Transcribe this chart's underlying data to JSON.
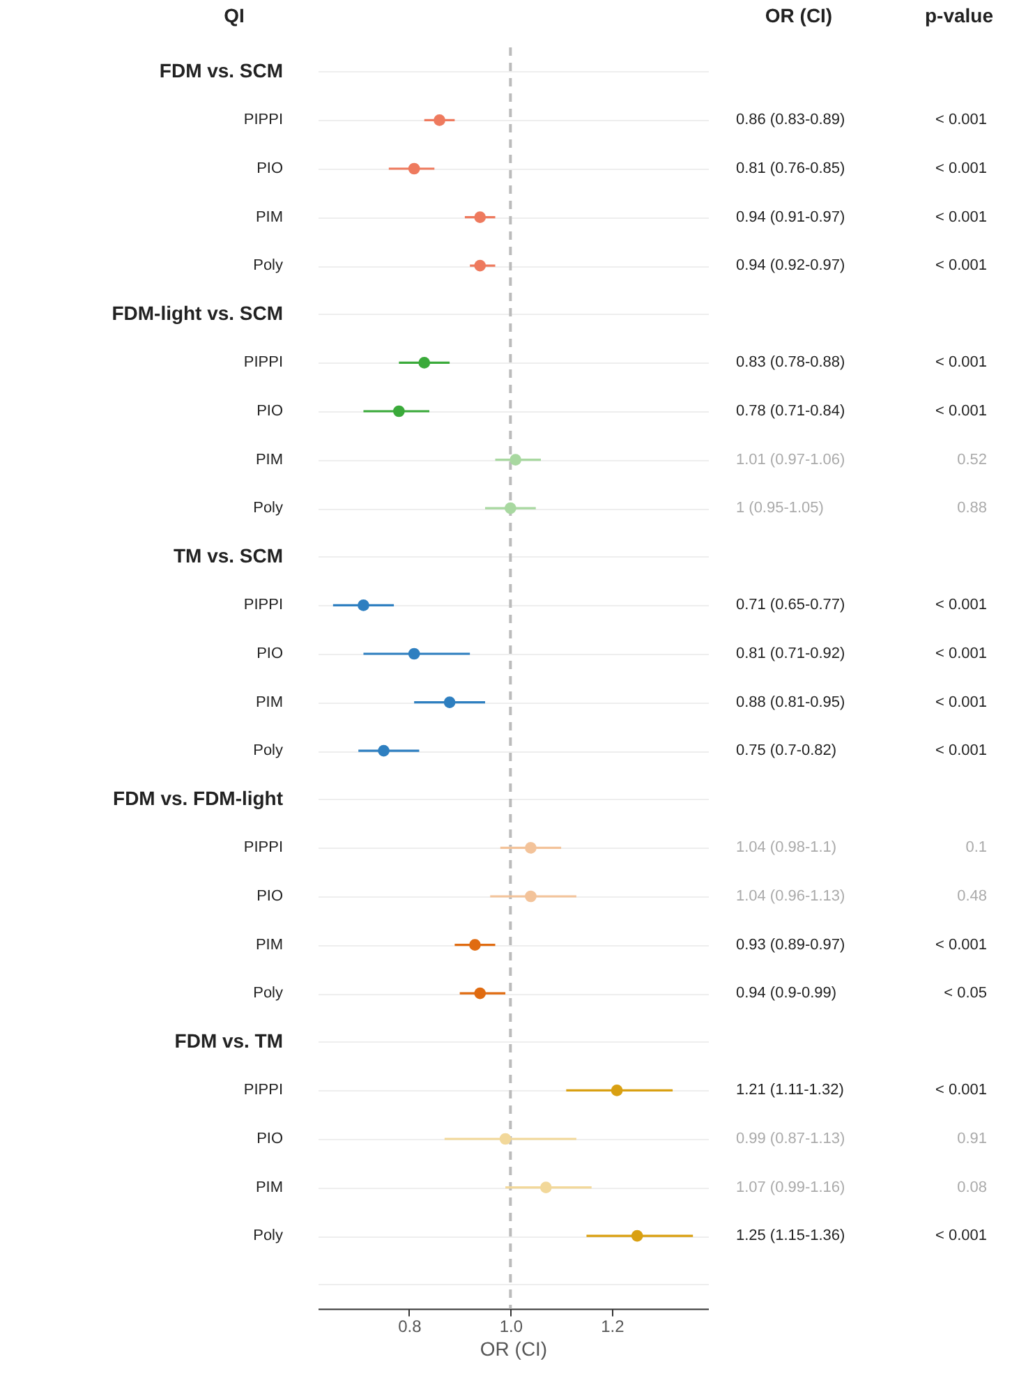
{
  "chart_data": {
    "type": "scatter",
    "ylabel": "QI",
    "xlabel": "OR (CI)",
    "categories": [
      "FDM vs. SCM",
      "PIPPI",
      "PIO",
      "PIM",
      "Poly",
      "FDM-light vs. SCM",
      "PIPPI",
      "PIO",
      "PIM",
      "Poly",
      "TM vs. SCM",
      "PIPPI",
      "PIO",
      "PIM",
      "Poly",
      "FDM vs. FDM-light",
      "PIPPI",
      "PIO",
      "PIM",
      "Poly",
      "FDM vs. TM",
      "PIPPI",
      "PIO",
      "PIM",
      "Poly",
      null
    ],
    "values": [
      null,
      0.86,
      0.81,
      0.94,
      0.94,
      null,
      0.83,
      0.78,
      1.01,
      1,
      null,
      0.71,
      0.81,
      0.88,
      0.75,
      null,
      1.04,
      1.04,
      0.93,
      0.94,
      null,
      1.21,
      0.99,
      1.07,
      1.25,
      null
    ],
    "orientation": "horizontal",
    "errors": [
      null,
      [
        0.83,
        0.89
      ],
      [
        0.76,
        0.85
      ],
      [
        0.91,
        0.97
      ],
      [
        0.92,
        0.97
      ],
      null,
      [
        0.78,
        0.88
      ],
      [
        0.71,
        0.84
      ],
      [
        0.97,
        1.06
      ],
      [
        0.95,
        1.05
      ],
      null,
      [
        0.65,
        0.77
      ],
      [
        0.71,
        0.92
      ],
      [
        0.81,
        0.95
      ],
      [
        0.7,
        0.82
      ],
      null,
      [
        0.98,
        1.1
      ],
      [
        0.96,
        1.13
      ],
      [
        0.89,
        0.97
      ],
      [
        0.9,
        0.99
      ],
      null,
      [
        1.11,
        1.32
      ],
      [
        0.87,
        1.13
      ],
      [
        0.99,
        1.16
      ],
      [
        1.15,
        1.36
      ],
      null
    ],
    "colors": [
      null,
      "#ee7a5e",
      "#ee7a5e",
      "#ee7a5e",
      "#ee7a5e",
      null,
      "#3aaa3a",
      "#3aaa3a",
      "#a8d8a0",
      "#a8d8a0",
      null,
      "#2e7fc0",
      "#2e7fc0",
      "#2e7fc0",
      "#2e7fc0",
      null,
      "#f3c39a",
      "#f3c39a",
      "#e06b10",
      "#e06b10",
      null,
      "#d9a012",
      "#f2d89a",
      "#f2d89a",
      "#d9a012",
      null
    ],
    "annotations": [
      "OR (CI)",
      "p-value",
      "0.86 (0.83-0.89)",
      "< 0.001",
      "0.81 (0.76-0.85)",
      "< 0.001",
      "0.94 (0.91-0.97)",
      "< 0.001",
      "0.94 (0.92-0.97)",
      "< 0.001",
      "0.83 (0.78-0.88)",
      "< 0.001",
      "0.78 (0.71-0.84)",
      "< 0.001",
      "1.01 (0.97-1.06)",
      "0.52",
      "1 (0.95-1.05)",
      "0.88",
      "0.71 (0.65-0.77)",
      "< 0.001",
      "0.81 (0.71-0.92)",
      "< 0.001",
      "0.88 (0.81-0.95)",
      "< 0.001",
      "0.75 (0.7-0.82)",
      "< 0.001",
      "1.04 (0.98-1.1)",
      "0.1",
      "1.04 (0.96-1.13)",
      "0.48",
      "0.93 (0.89-0.97)",
      "< 0.001",
      "0.94 (0.9-0.99)",
      "< 0.05",
      "1.21 (1.11-1.32)",
      "< 0.001",
      "0.99 (0.87-1.13)",
      "0.91",
      "1.07 (0.99-1.16)",
      "0.08",
      "1.25 (1.15-1.36)",
      "< 0.001"
    ],
    "xlim": [
      0.62,
      1.39
    ],
    "xticks": [
      0.8,
      {
        "value": 1,
        "label": "1.0"
      },
      1.2
    ],
    "ref_lines": [
      {
        "axis": "x",
        "value": 1,
        "color": "#bbbbbb",
        "line_style": "dashed"
      }
    ],
    "grid": "y",
    "marker": "circle"
  }
}
